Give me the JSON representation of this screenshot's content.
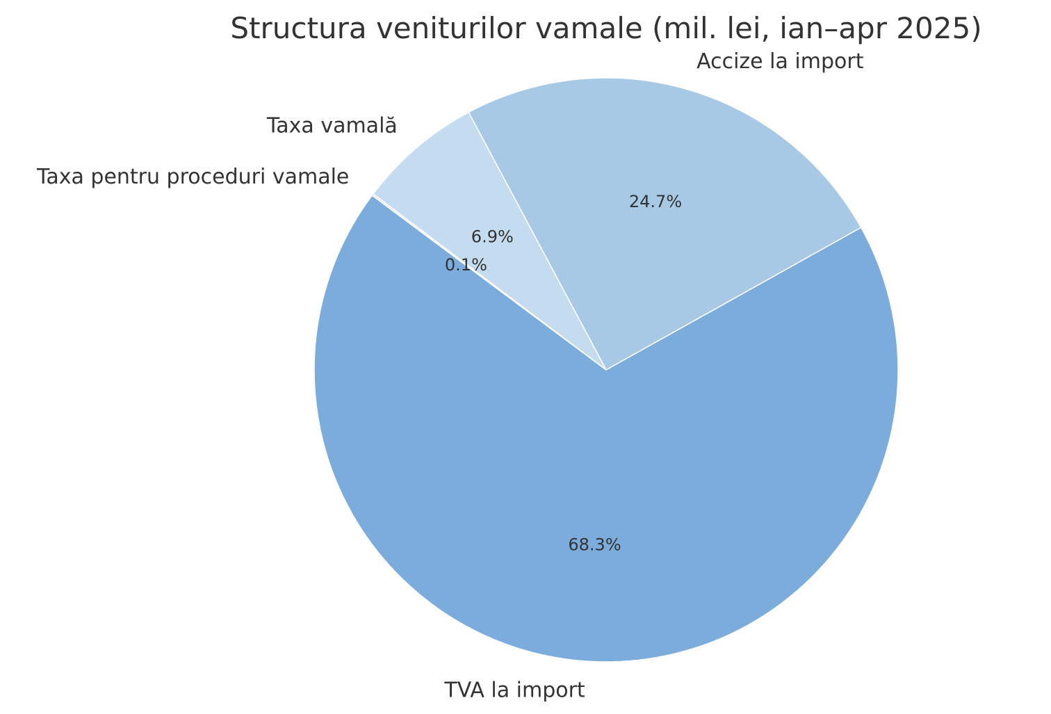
{
  "chart_data": {
    "type": "pie",
    "title": "Structura veniturilor vamale (mil. lei, ian–apr 2025)",
    "slices": [
      {
        "label": "TVA la import",
        "percent_label": "68.3%",
        "value": 68.3,
        "color": "#7cacdc"
      },
      {
        "label": "Accize la import",
        "percent_label": "24.7%",
        "value": 24.7,
        "color": "#a7c9e6"
      },
      {
        "label": "Taxa vamală",
        "percent_label": "6.9%",
        "value": 6.9,
        "color": "#c4dbf0"
      },
      {
        "label": "Taxa pentru proceduri vamale",
        "percent_label": "0.1%",
        "value": 0.1,
        "color": "#dce8f5"
      }
    ],
    "legend": "none"
  }
}
